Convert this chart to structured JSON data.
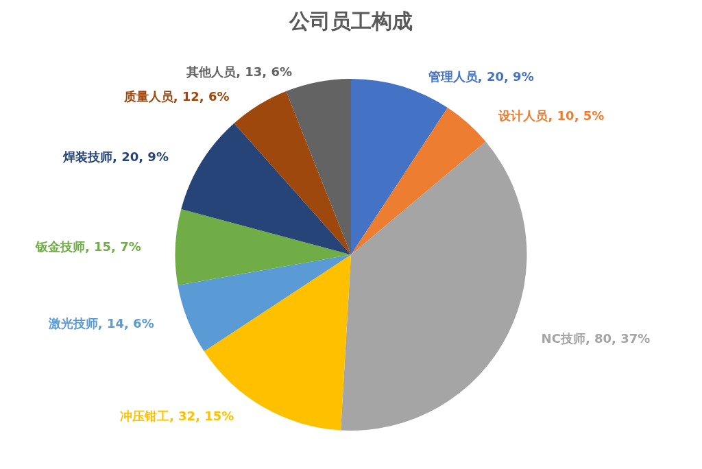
{
  "chart_data": {
    "type": "pie",
    "title": "公司员工构成",
    "categories": [
      "管理人员",
      "设计人员",
      "NC技师",
      "冲压钳工",
      "激光技师",
      "钣金技师",
      "焊装技师",
      "质量人员",
      "其他人员"
    ],
    "values": [
      20,
      10,
      80,
      32,
      14,
      15,
      20,
      12,
      13
    ],
    "value_labels": [
      "20, 9%",
      "10, 5%",
      "80, 37%",
      "32, 15%",
      "14, 6%",
      "15, 7%",
      "20, 9%",
      "12, 6%",
      "13, 6%"
    ],
    "colors": [
      "#4472c4",
      "#ed7d31",
      "#a5a5a5",
      "#ffc000",
      "#5b9bd5",
      "#70ad47",
      "#264478",
      "#9e480e",
      "#636363"
    ],
    "legend": false
  }
}
